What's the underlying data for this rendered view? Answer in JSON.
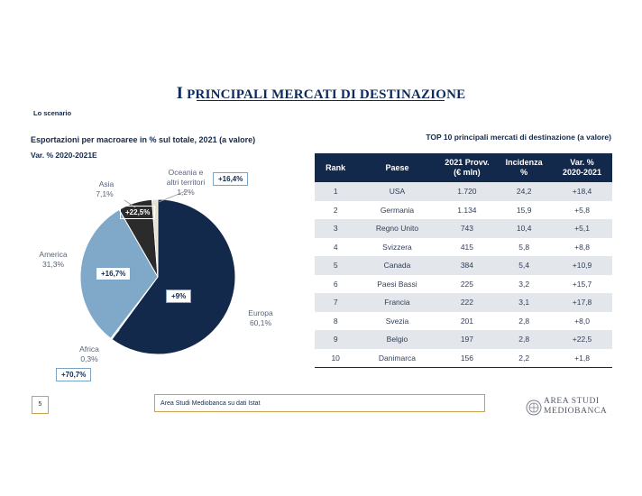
{
  "page_title": {
    "first": "I",
    "rest": " PRINCIPALI MERCATI DI DESTINAZIONE"
  },
  "section_label": "Lo scenario",
  "chart_title": "Esportazioni per macroaree in % sul totale, 2021 (a valore)",
  "chart_subtitle": "Var. % 2020-2021E",
  "table_title": "TOP 10 principali mercati di destinazione (a valore)",
  "chart_data": {
    "type": "pie",
    "title": "Esportazioni per macroaree in % sul totale, 2021 (a valore)",
    "subtitle": "Var. % 2020-2021E",
    "slices": [
      {
        "name": "Europa",
        "value_label": "60,1%",
        "value": 60.1,
        "change": "+9%",
        "color": "#13294b"
      },
      {
        "name": "Africa",
        "value_label": "0,3%",
        "value": 0.3,
        "change": "+70,7%",
        "color": "#a6bdd2"
      },
      {
        "name": "America",
        "value_label": "31,3%",
        "value": 31.3,
        "change": "+16,7%",
        "color": "#7fa8c9"
      },
      {
        "name": "Asia",
        "value_label": "7,1%",
        "value": 7.1,
        "change": "+22,5%",
        "color": "#2b2b2b"
      },
      {
        "name": "Oceania e altri territori",
        "value_label": "1,2%",
        "value": 1.2,
        "change": "+16,4%",
        "color": "#e6e0cf"
      }
    ],
    "labels": {
      "europa": [
        "Europa",
        "60,1%"
      ],
      "africa": [
        "Africa",
        "0,3%"
      ],
      "america": [
        "America",
        "31,3%"
      ],
      "asia": [
        "Asia",
        "7,1%"
      ],
      "oceania": [
        "Oceania e",
        "altri territori",
        "1,2%"
      ]
    }
  },
  "table": {
    "headers": {
      "rank": "Rank",
      "paese": "Paese",
      "prov1": "2021 Provv.",
      "prov2": "(€ mln)",
      "inc1": "Incidenza",
      "inc2": "%",
      "var1": "Var. %",
      "var2": "2020-2021"
    },
    "rows": [
      {
        "rank": "1",
        "paese": "USA",
        "valore": "1.720",
        "incidenza": "24,2",
        "var": "+18,4"
      },
      {
        "rank": "2",
        "paese": "Germania",
        "valore": "1.134",
        "incidenza": "15,9",
        "var": "+5,8"
      },
      {
        "rank": "3",
        "paese": "Regno Unito",
        "valore": "743",
        "incidenza": "10,4",
        "var": "+5,1"
      },
      {
        "rank": "4",
        "paese": "Svizzera",
        "valore": "415",
        "incidenza": "5,8",
        "var": "+8,8"
      },
      {
        "rank": "5",
        "paese": "Canada",
        "valore": "384",
        "incidenza": "5,4",
        "var": "+10,9"
      },
      {
        "rank": "6",
        "paese": "Paesi Bassi",
        "valore": "225",
        "incidenza": "3,2",
        "var": "+15,7"
      },
      {
        "rank": "7",
        "paese": "Francia",
        "valore": "222",
        "incidenza": "3,1",
        "var": "+17,8"
      },
      {
        "rank": "8",
        "paese": "Svezia",
        "valore": "201",
        "incidenza": "2,8",
        "var": "+8,0"
      },
      {
        "rank": "9",
        "paese": "Belgio",
        "valore": "197",
        "incidenza": "2,8",
        "var": "+22,5"
      },
      {
        "rank": "10",
        "paese": "Danimarca",
        "valore": "156",
        "incidenza": "2,2",
        "var": "+1,8"
      }
    ]
  },
  "footer": {
    "page_number": "5",
    "source": "Area Studi Mediobanca su dati Istat",
    "logo_line1": "AREA STUDI",
    "logo_line2": "MEDIOBANCA",
    "logo_icon": "mediobanca-seal-icon"
  }
}
